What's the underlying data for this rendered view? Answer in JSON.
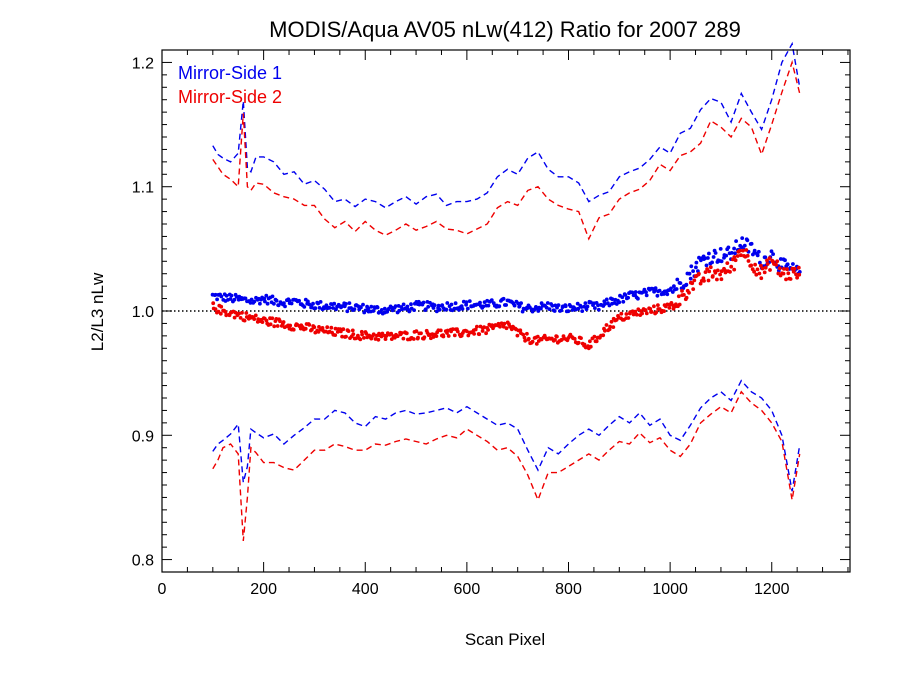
{
  "chart_data": {
    "type": "line",
    "title": "MODIS/Aqua AV05 nLw(412) Ratio for 2007 289",
    "xlabel": "Scan Pixel",
    "ylabel": "L2/L3 nLw",
    "xlim": [
      0,
      1354
    ],
    "ylim": [
      0.79,
      1.21
    ],
    "xticks": [
      0,
      200,
      400,
      600,
      800,
      1000,
      1200
    ],
    "yticks": [
      0.8,
      0.9,
      1.0,
      1.1,
      1.2
    ],
    "xtick_labels": [
      "0",
      "200",
      "400",
      "600",
      "800",
      "1000",
      "1200"
    ],
    "ytick_labels": [
      "0.8",
      "0.9",
      "1.0",
      "1.1",
      "1.2"
    ],
    "reference_line": 1.0,
    "legend": {
      "placement": "top-left"
    },
    "series": [
      {
        "name": "Mirror-Side 1",
        "color": "#0000ee",
        "style": "points",
        "x": [
          100,
          120,
          140,
          160,
          180,
          200,
          220,
          240,
          260,
          280,
          300,
          320,
          340,
          360,
          380,
          400,
          420,
          440,
          460,
          480,
          500,
          520,
          540,
          560,
          580,
          600,
          620,
          640,
          660,
          680,
          700,
          720,
          740,
          760,
          780,
          800,
          820,
          840,
          860,
          880,
          900,
          920,
          940,
          960,
          980,
          1000,
          1020,
          1040,
          1060,
          1080,
          1100,
          1120,
          1140,
          1160,
          1180,
          1200,
          1220,
          1240,
          1255
        ],
        "y": [
          1.012,
          1.011,
          1.01,
          1.009,
          1.008,
          1.01,
          1.008,
          1.007,
          1.008,
          1.006,
          1.005,
          1.004,
          1.004,
          1.003,
          1.003,
          1.002,
          1.001,
          1.001,
          1.002,
          1.002,
          1.004,
          1.004,
          1.003,
          1.004,
          1.004,
          1.005,
          1.005,
          1.005,
          1.006,
          1.007,
          1.004,
          1.002,
          1.003,
          1.004,
          1.002,
          1.002,
          1.003,
          1.004,
          1.003,
          1.007,
          1.009,
          1.012,
          1.013,
          1.015,
          1.016,
          1.017,
          1.022,
          1.03,
          1.04,
          1.044,
          1.045,
          1.046,
          1.055,
          1.05,
          1.04,
          1.045,
          1.036,
          1.033,
          1.03
        ]
      },
      {
        "name": "Mirror-Side 2",
        "color": "#ee0000",
        "style": "points",
        "x": [
          100,
          120,
          140,
          160,
          180,
          200,
          220,
          240,
          260,
          280,
          300,
          320,
          340,
          360,
          380,
          400,
          420,
          440,
          460,
          480,
          500,
          520,
          540,
          560,
          580,
          600,
          620,
          640,
          660,
          680,
          700,
          720,
          740,
          760,
          780,
          800,
          820,
          840,
          860,
          880,
          900,
          920,
          940,
          960,
          980,
          1000,
          1020,
          1040,
          1060,
          1080,
          1100,
          1120,
          1140,
          1160,
          1180,
          1200,
          1220,
          1240,
          1255
        ],
        "y": [
          1.003,
          1.0,
          0.998,
          0.996,
          0.994,
          0.992,
          0.991,
          0.99,
          0.988,
          0.987,
          0.985,
          0.984,
          0.983,
          0.982,
          0.981,
          0.98,
          0.98,
          0.979,
          0.98,
          0.98,
          0.981,
          0.981,
          0.982,
          0.982,
          0.982,
          0.983,
          0.984,
          0.985,
          0.987,
          0.989,
          0.982,
          0.978,
          0.976,
          0.977,
          0.978,
          0.978,
          0.976,
          0.972,
          0.98,
          0.988,
          0.994,
          0.997,
          0.999,
          1.0,
          1.002,
          1.003,
          1.01,
          1.02,
          1.025,
          1.03,
          1.03,
          1.035,
          1.05,
          1.04,
          1.03,
          1.04,
          1.03,
          1.03,
          1.03
        ]
      },
      {
        "name": "",
        "color": "#0000ee",
        "style": "dashed",
        "x": [
          100,
          110,
          120,
          135,
          150,
          160,
          168,
          175,
          185,
          200,
          220,
          240,
          260,
          280,
          300,
          320,
          340,
          360,
          380,
          400,
          420,
          440,
          460,
          480,
          500,
          520,
          540,
          560,
          580,
          600,
          620,
          640,
          660,
          680,
          700,
          720,
          740,
          760,
          780,
          800,
          820,
          840,
          860,
          880,
          900,
          920,
          940,
          960,
          980,
          1000,
          1020,
          1040,
          1060,
          1080,
          1100,
          1120,
          1140,
          1160,
          1180,
          1200,
          1220,
          1240,
          1255
        ],
        "y": [
          1.133,
          1.126,
          1.123,
          1.12,
          1.127,
          1.169,
          1.115,
          1.112,
          1.124,
          1.124,
          1.12,
          1.11,
          1.112,
          1.102,
          1.105,
          1.098,
          1.088,
          1.09,
          1.084,
          1.09,
          1.088,
          1.083,
          1.088,
          1.092,
          1.086,
          1.092,
          1.094,
          1.085,
          1.088,
          1.088,
          1.09,
          1.095,
          1.108,
          1.114,
          1.11,
          1.123,
          1.128,
          1.114,
          1.108,
          1.108,
          1.103,
          1.088,
          1.093,
          1.096,
          1.108,
          1.112,
          1.115,
          1.122,
          1.132,
          1.127,
          1.143,
          1.147,
          1.162,
          1.171,
          1.168,
          1.152,
          1.175,
          1.16,
          1.146,
          1.17,
          1.2,
          1.215,
          1.18
        ]
      },
      {
        "name": "",
        "color": "#ee0000",
        "style": "dashed",
        "x": [
          100,
          110,
          120,
          135,
          150,
          160,
          168,
          175,
          185,
          200,
          220,
          240,
          260,
          280,
          300,
          320,
          340,
          360,
          380,
          400,
          420,
          440,
          460,
          480,
          500,
          520,
          540,
          560,
          580,
          600,
          620,
          640,
          660,
          680,
          700,
          720,
          740,
          760,
          780,
          800,
          820,
          840,
          860,
          880,
          900,
          920,
          940,
          960,
          980,
          1000,
          1020,
          1040,
          1060,
          1080,
          1100,
          1120,
          1140,
          1160,
          1180,
          1200,
          1220,
          1240,
          1255
        ],
        "y": [
          1.122,
          1.116,
          1.11,
          1.106,
          1.1,
          1.159,
          1.1,
          1.097,
          1.103,
          1.102,
          1.095,
          1.092,
          1.09,
          1.085,
          1.085,
          1.074,
          1.067,
          1.072,
          1.064,
          1.072,
          1.065,
          1.061,
          1.065,
          1.07,
          1.065,
          1.068,
          1.072,
          1.066,
          1.065,
          1.062,
          1.066,
          1.07,
          1.083,
          1.088,
          1.085,
          1.097,
          1.1,
          1.09,
          1.085,
          1.082,
          1.08,
          1.058,
          1.075,
          1.078,
          1.09,
          1.095,
          1.098,
          1.105,
          1.118,
          1.113,
          1.125,
          1.128,
          1.135,
          1.153,
          1.148,
          1.14,
          1.155,
          1.148,
          1.126,
          1.15,
          1.176,
          1.2,
          1.175
        ]
      },
      {
        "name": "",
        "color": "#0000ee",
        "style": "dashed",
        "x": [
          100,
          110,
          120,
          135,
          150,
          160,
          168,
          175,
          185,
          200,
          220,
          240,
          260,
          280,
          300,
          320,
          340,
          360,
          380,
          400,
          420,
          440,
          460,
          480,
          500,
          520,
          540,
          560,
          580,
          600,
          620,
          640,
          660,
          680,
          700,
          720,
          740,
          760,
          780,
          800,
          820,
          840,
          860,
          880,
          900,
          920,
          940,
          960,
          980,
          1000,
          1020,
          1040,
          1060,
          1080,
          1100,
          1120,
          1140,
          1160,
          1180,
          1200,
          1220,
          1240,
          1255
        ],
        "y": [
          0.887,
          0.893,
          0.896,
          0.901,
          0.909,
          0.862,
          0.875,
          0.905,
          0.902,
          0.898,
          0.901,
          0.893,
          0.9,
          0.906,
          0.913,
          0.913,
          0.92,
          0.918,
          0.91,
          0.907,
          0.915,
          0.913,
          0.918,
          0.92,
          0.917,
          0.918,
          0.92,
          0.922,
          0.918,
          0.923,
          0.918,
          0.913,
          0.908,
          0.91,
          0.905,
          0.888,
          0.872,
          0.89,
          0.885,
          0.893,
          0.9,
          0.905,
          0.9,
          0.908,
          0.915,
          0.91,
          0.918,
          0.908,
          0.913,
          0.9,
          0.896,
          0.908,
          0.922,
          0.93,
          0.935,
          0.928,
          0.944,
          0.935,
          0.93,
          0.92,
          0.9,
          0.855,
          0.892
        ]
      },
      {
        "name": "",
        "color": "#ee0000",
        "style": "dashed",
        "x": [
          100,
          110,
          120,
          135,
          150,
          160,
          168,
          175,
          185,
          200,
          220,
          240,
          260,
          280,
          300,
          320,
          340,
          360,
          380,
          400,
          420,
          440,
          460,
          480,
          500,
          520,
          540,
          560,
          580,
          600,
          620,
          640,
          660,
          680,
          700,
          720,
          740,
          760,
          780,
          800,
          820,
          840,
          860,
          880,
          900,
          920,
          940,
          960,
          980,
          1000,
          1020,
          1040,
          1060,
          1080,
          1100,
          1120,
          1140,
          1160,
          1180,
          1200,
          1220,
          1240,
          1255
        ],
        "y": [
          0.873,
          0.88,
          0.89,
          0.893,
          0.885,
          0.815,
          0.85,
          0.89,
          0.886,
          0.878,
          0.878,
          0.874,
          0.872,
          0.88,
          0.888,
          0.888,
          0.893,
          0.891,
          0.888,
          0.888,
          0.893,
          0.892,
          0.895,
          0.897,
          0.895,
          0.893,
          0.897,
          0.9,
          0.898,
          0.905,
          0.9,
          0.895,
          0.888,
          0.89,
          0.883,
          0.868,
          0.848,
          0.87,
          0.87,
          0.875,
          0.88,
          0.885,
          0.88,
          0.888,
          0.895,
          0.893,
          0.902,
          0.894,
          0.898,
          0.888,
          0.883,
          0.893,
          0.91,
          0.917,
          0.923,
          0.918,
          0.935,
          0.926,
          0.92,
          0.91,
          0.895,
          0.848,
          0.885
        ]
      }
    ]
  }
}
